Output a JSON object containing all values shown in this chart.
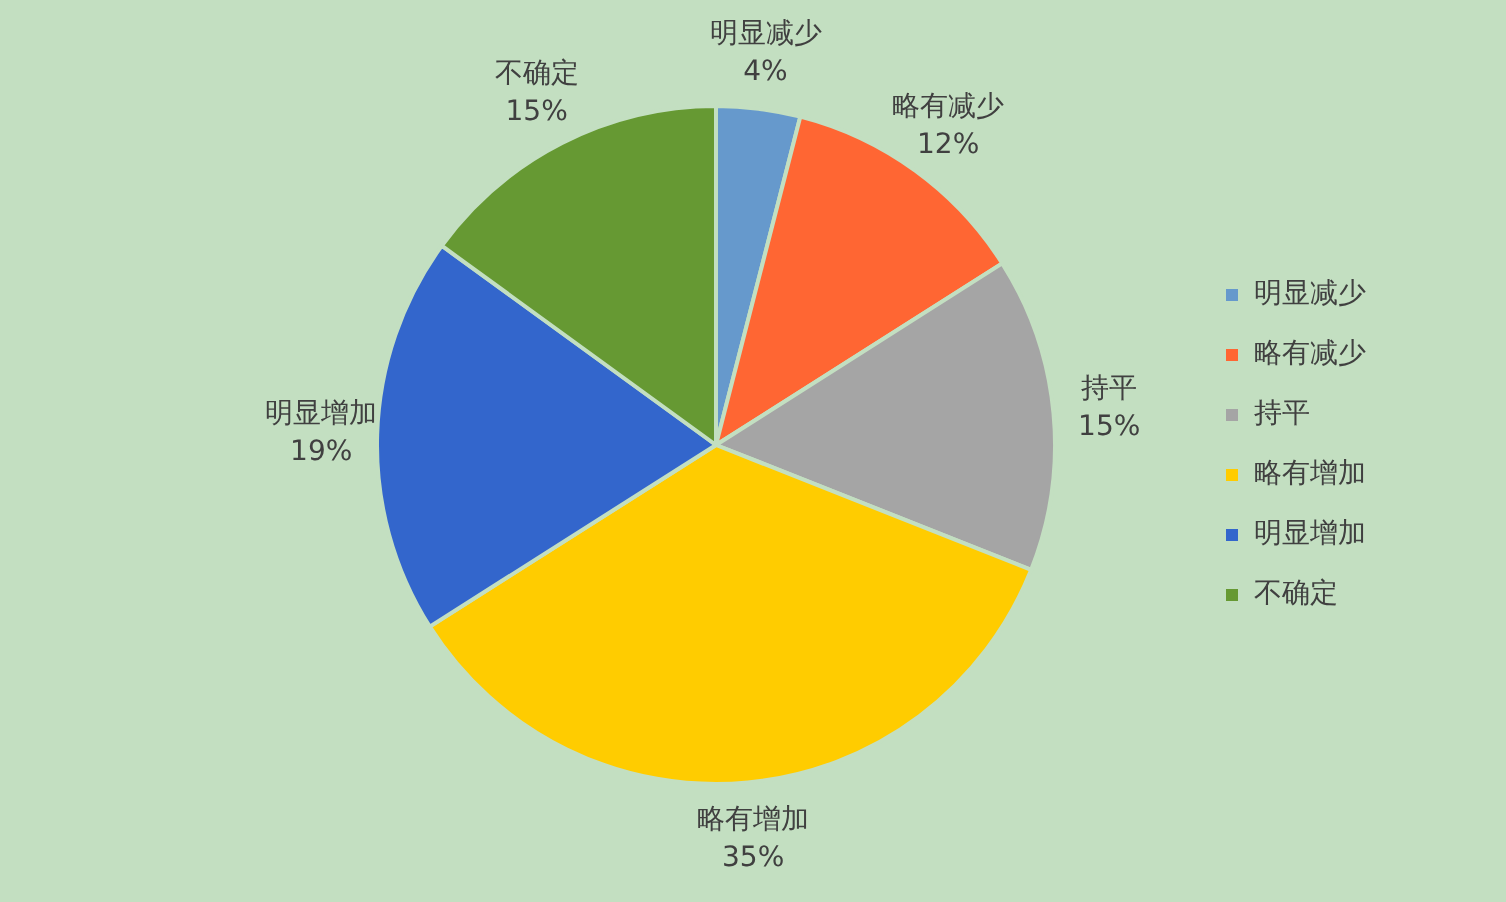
{
  "chart_data": {
    "type": "pie",
    "categories": [
      "明显减少",
      "略有减少",
      "持平",
      "略有增加",
      "明显增加",
      "不确定"
    ],
    "values": [
      4,
      12,
      15,
      35,
      19,
      15
    ],
    "value_labels": [
      "4%",
      "12%",
      "15%",
      "35%",
      "19%",
      "15%"
    ],
    "colors": [
      "#6699cc",
      "#ff6633",
      "#a5a5a5",
      "#ffcc00",
      "#3366cc",
      "#669933"
    ],
    "legend": "right"
  }
}
